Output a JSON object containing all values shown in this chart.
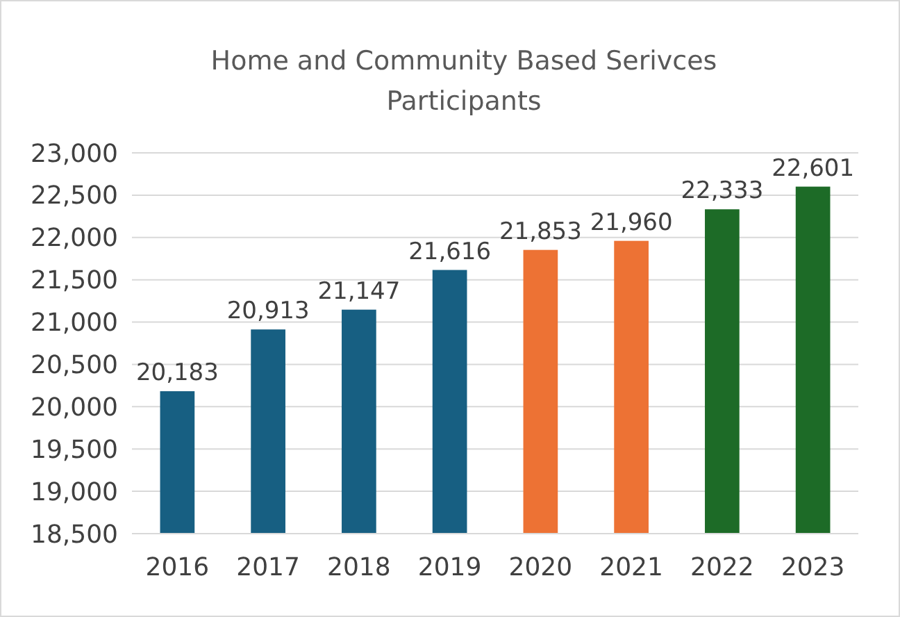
{
  "chart_data": {
    "type": "bar",
    "title": "Home and Community Based Serivces Participants",
    "categories": [
      "2016",
      "2017",
      "2018",
      "2019",
      "2020",
      "2021",
      "2022",
      "2023"
    ],
    "values": [
      20183,
      20913,
      21147,
      21616,
      21853,
      21960,
      22333,
      22601
    ],
    "value_labels": [
      "20,183",
      "20,913",
      "21,147",
      "21,616",
      "21,853",
      "21,960",
      "22,333",
      "22,601"
    ],
    "colors": [
      "#175f82",
      "#175f82",
      "#175f82",
      "#175f82",
      "#ed7234",
      "#ed7234",
      "#1d6b27",
      "#1d6b27"
    ],
    "ylim": [
      18500,
      23000
    ],
    "yticks": [
      {
        "value": 18500,
        "label": "18,500"
      },
      {
        "value": 19000,
        "label": "19,000"
      },
      {
        "value": 19500,
        "label": "19,500"
      },
      {
        "value": 20000,
        "label": "20,000"
      },
      {
        "value": 20500,
        "label": "20,500"
      },
      {
        "value": 21000,
        "label": "21,000"
      },
      {
        "value": 21500,
        "label": "21,500"
      },
      {
        "value": 22000,
        "label": "22,000"
      },
      {
        "value": 22500,
        "label": "22,500"
      },
      {
        "value": 23000,
        "label": "23,000"
      }
    ],
    "grid": "y"
  }
}
